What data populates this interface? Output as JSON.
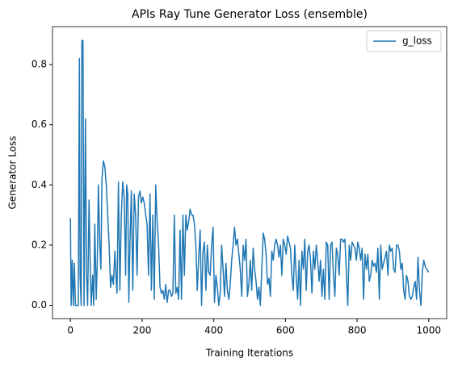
{
  "chart_data": {
    "type": "line",
    "title": "APIs Ray Tune Generator Loss (ensemble)",
    "xlabel": "Training Iterations",
    "ylabel": "Generator Loss",
    "x": [
      0,
      2,
      5,
      8,
      11,
      14,
      18,
      22,
      25,
      27,
      30,
      32,
      35,
      38,
      42,
      45,
      48,
      52,
      55,
      58,
      62,
      65,
      68,
      72,
      75,
      78,
      82,
      85,
      88,
      92,
      96,
      100,
      104,
      108,
      112,
      116,
      120,
      124,
      127,
      130,
      134,
      138,
      142,
      146,
      150,
      154,
      157,
      160,
      163,
      166,
      170,
      174,
      178,
      182,
      186,
      190,
      194,
      198,
      202,
      206,
      210,
      214,
      218,
      222,
      226,
      230,
      234,
      238,
      242,
      246,
      250,
      254,
      258,
      262,
      266,
      270,
      274,
      278,
      282,
      286,
      290,
      294,
      298,
      302,
      306,
      310,
      314,
      318,
      322,
      326,
      330,
      334,
      338,
      342,
      346,
      350,
      354,
      358,
      362,
      366,
      370,
      374,
      378,
      382,
      386,
      390,
      394,
      398,
      402,
      406,
      410,
      414,
      418,
      422,
      426,
      430,
      434,
      438,
      442,
      446,
      450,
      454,
      458,
      462,
      466,
      470,
      474,
      478,
      482,
      486,
      490,
      494,
      498,
      502,
      506,
      510,
      514,
      518,
      522,
      526,
      530,
      534,
      538,
      542,
      546,
      550,
      554,
      558,
      562,
      566,
      570,
      574,
      578,
      582,
      586,
      590,
      594,
      598,
      602,
      606,
      610,
      614,
      618,
      622,
      626,
      630,
      634,
      638,
      642,
      646,
      650,
      654,
      658,
      662,
      666,
      670,
      674,
      678,
      682,
      686,
      690,
      694,
      698,
      702,
      706,
      710,
      714,
      718,
      722,
      726,
      730,
      734,
      738,
      742,
      746,
      750,
      754,
      758,
      762,
      766,
      770,
      774,
      778,
      782,
      786,
      790,
      794,
      798,
      802,
      806,
      810,
      814,
      818,
      822,
      826,
      830,
      834,
      838,
      842,
      846,
      850,
      854,
      858,
      862,
      866,
      870,
      874,
      878,
      882,
      886,
      890,
      894,
      898,
      902,
      906,
      910,
      914,
      918,
      922,
      926,
      930,
      934,
      938,
      942,
      946,
      950,
      954,
      958,
      962,
      966,
      970,
      974,
      978,
      982,
      986,
      990,
      994,
      1000
    ],
    "series": [
      {
        "name": "g_loss",
        "color": "#1f77b4",
        "values": [
          0.29,
          0.0,
          0.15,
          0.0,
          0.14,
          0.0,
          0.0,
          0.0,
          0.82,
          0.1,
          0.0,
          0.88,
          0.88,
          0.0,
          0.62,
          0.1,
          0.0,
          0.35,
          0.15,
          0.0,
          0.1,
          0.0,
          0.27,
          0.02,
          0.15,
          0.4,
          0.2,
          0.12,
          0.42,
          0.48,
          0.46,
          0.4,
          0.3,
          0.2,
          0.06,
          0.1,
          0.07,
          0.18,
          0.1,
          0.04,
          0.41,
          0.05,
          0.3,
          0.41,
          0.36,
          0.1,
          0.4,
          0.37,
          0.01,
          0.2,
          0.38,
          0.05,
          0.37,
          0.3,
          0.1,
          0.36,
          0.38,
          0.34,
          0.36,
          0.34,
          0.3,
          0.27,
          0.1,
          0.37,
          0.05,
          0.3,
          0.02,
          0.4,
          0.28,
          0.2,
          0.06,
          0.04,
          0.05,
          0.02,
          0.07,
          0.01,
          0.05,
          0.05,
          0.03,
          0.04,
          0.3,
          0.04,
          0.06,
          0.02,
          0.25,
          0.02,
          0.3,
          0.1,
          0.3,
          0.25,
          0.28,
          0.32,
          0.3,
          0.3,
          0.27,
          0.2,
          0.05,
          0.16,
          0.25,
          0.0,
          0.18,
          0.21,
          0.05,
          0.2,
          0.11,
          0.1,
          0.2,
          0.26,
          0.01,
          0.1,
          0.06,
          0.0,
          0.04,
          0.2,
          0.12,
          0.03,
          0.14,
          0.05,
          0.02,
          0.07,
          0.15,
          0.2,
          0.26,
          0.2,
          0.22,
          0.17,
          0.12,
          0.03,
          0.2,
          0.15,
          0.22,
          0.03,
          0.07,
          0.15,
          0.05,
          0.19,
          0.12,
          0.08,
          0.02,
          0.06,
          0.0,
          0.12,
          0.24,
          0.22,
          0.17,
          0.07,
          0.09,
          0.03,
          0.18,
          0.15,
          0.2,
          0.22,
          0.2,
          0.16,
          0.2,
          0.1,
          0.22,
          0.2,
          0.17,
          0.23,
          0.21,
          0.19,
          0.1,
          0.05,
          0.2,
          0.1,
          0.02,
          0.15,
          0.0,
          0.18,
          0.12,
          0.22,
          0.05,
          0.18,
          0.2,
          0.15,
          0.04,
          0.18,
          0.12,
          0.2,
          0.15,
          0.08,
          0.15,
          0.03,
          0.12,
          0.02,
          0.21,
          0.2,
          0.02,
          0.2,
          0.21,
          0.1,
          0.03,
          0.19,
          0.17,
          0.1,
          0.22,
          0.22,
          0.21,
          0.22,
          0.11,
          0.0,
          0.2,
          0.15,
          0.21,
          0.2,
          0.19,
          0.15,
          0.21,
          0.19,
          0.15,
          0.19,
          0.02,
          0.17,
          0.12,
          0.17,
          0.08,
          0.1,
          0.15,
          0.13,
          0.14,
          0.11,
          0.19,
          0.02,
          0.2,
          0.12,
          0.14,
          0.16,
          0.18,
          0.1,
          0.2,
          0.18,
          0.19,
          0.12,
          0.11,
          0.2,
          0.2,
          0.18,
          0.12,
          0.14,
          0.05,
          0.02,
          0.1,
          0.08,
          0.03,
          0.02,
          0.03,
          0.06,
          0.08,
          0.02,
          0.16,
          0.05,
          0.0,
          0.11,
          0.15,
          0.13,
          0.12,
          0.11
        ]
      }
    ],
    "xlim": [
      -50,
      1050
    ],
    "ylim": [
      -0.044,
      0.926
    ],
    "xticks": [
      0,
      200,
      400,
      600,
      800,
      1000
    ],
    "yticks": [
      {
        "value": 0,
        "label": "0.0"
      },
      {
        "value": 0.2,
        "label": "0.2"
      },
      {
        "value": 0.4,
        "label": "0.4"
      },
      {
        "value": 0.6,
        "label": "0.6"
      },
      {
        "value": 0.8,
        "label": "0.8"
      }
    ],
    "legend": "upper right"
  }
}
